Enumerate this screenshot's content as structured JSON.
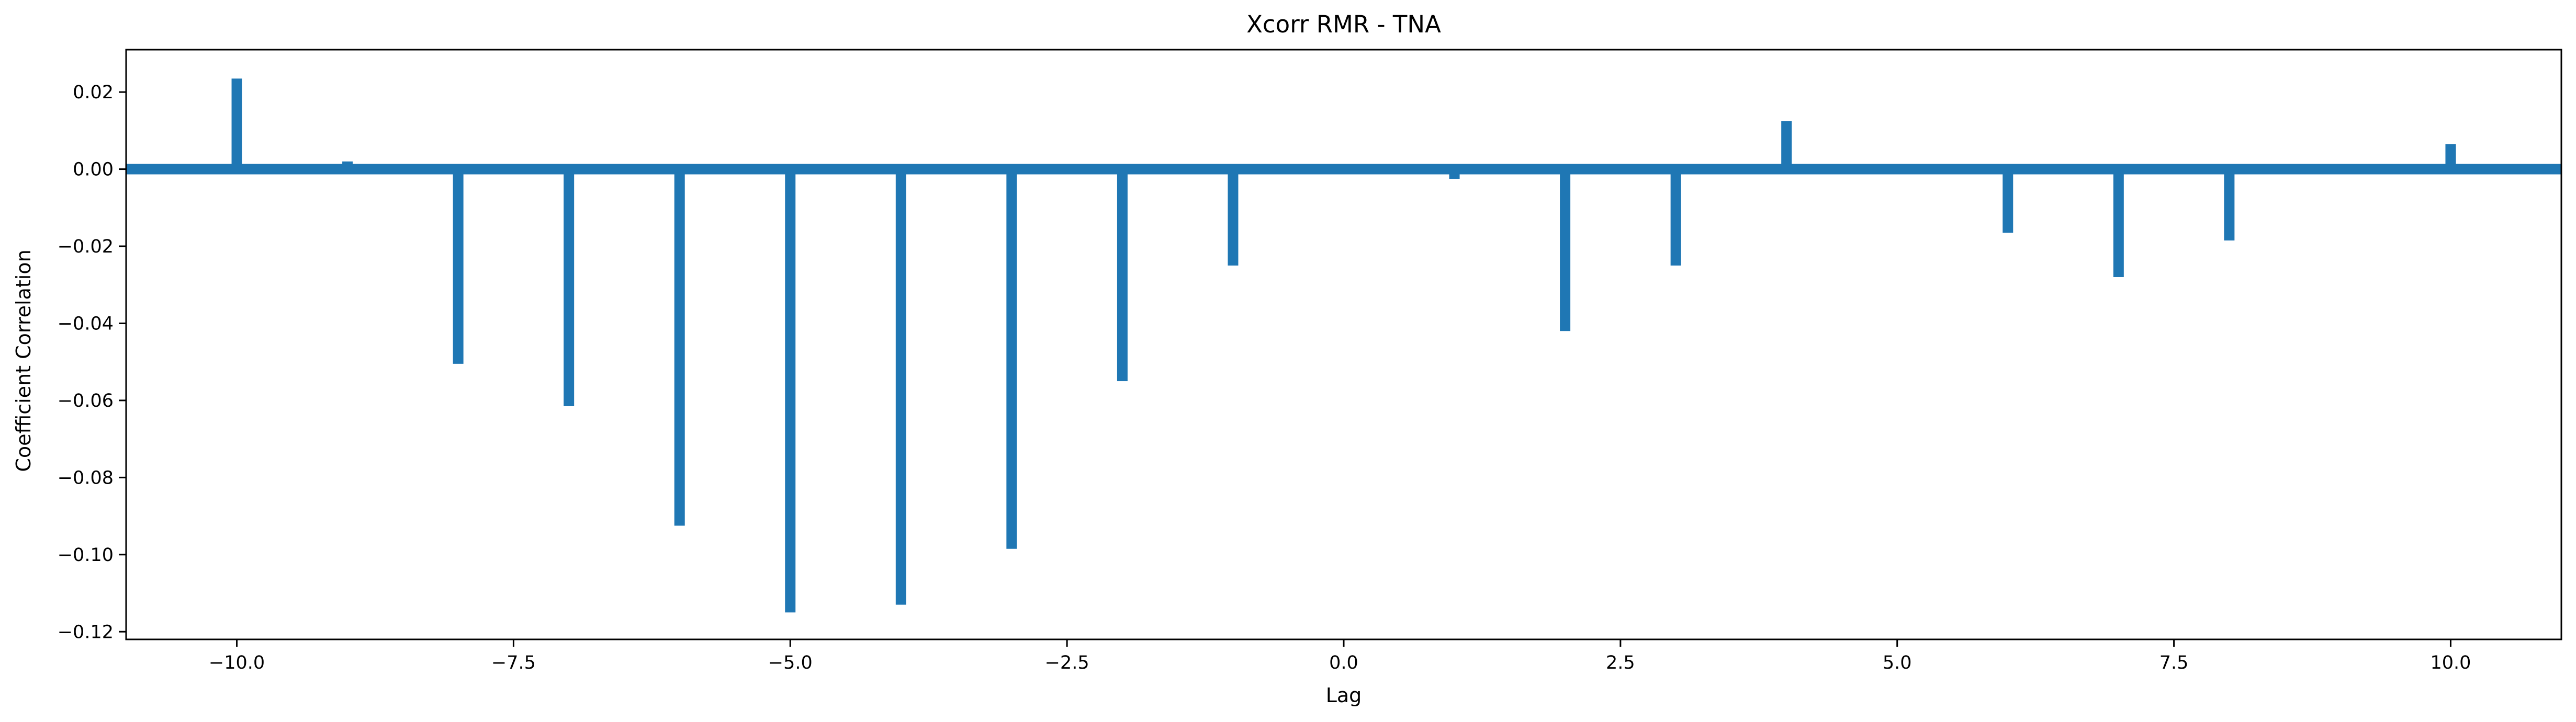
{
  "chart_data": {
    "type": "bar",
    "title": "Xcorr RMR - TNA",
    "xlabel": "Lag",
    "ylabel": "Coefficient Correlation",
    "xlim": [
      -11,
      11
    ],
    "ylim": [
      -0.122,
      0.031
    ],
    "x_ticks": [
      -10.0,
      -7.5,
      -5.0,
      -2.5,
      0.0,
      2.5,
      5.0,
      7.5,
      10.0
    ],
    "x_tick_labels": [
      "−10.0",
      "−7.5",
      "−5.0",
      "−2.5",
      "0.0",
      "2.5",
      "5.0",
      "7.5",
      "10.0"
    ],
    "y_ticks": [
      0.02,
      0.0,
      -0.02,
      -0.04,
      -0.06,
      -0.08,
      -0.1,
      -0.12
    ],
    "y_tick_labels": [
      "0.02",
      "0.00",
      "−0.02",
      "−0.04",
      "−0.06",
      "−0.08",
      "−0.10",
      "−0.12"
    ],
    "grid": false,
    "bar_color": "#1f77b4",
    "baseline_color": "#1f77b4",
    "x": [
      -10,
      -9,
      -8,
      -7,
      -6,
      -5,
      -4,
      -3,
      -2,
      -1,
      0,
      1,
      2,
      3,
      4,
      5,
      6,
      7,
      8,
      9,
      10
    ],
    "values": [
      0.0235,
      0.002,
      -0.0505,
      -0.0615,
      -0.0925,
      -0.115,
      -0.113,
      -0.0985,
      -0.055,
      -0.025,
      0.0,
      -0.0025,
      -0.042,
      -0.025,
      0.0125,
      0.001,
      -0.0165,
      -0.028,
      -0.0185,
      0.0,
      0.0065
    ]
  }
}
